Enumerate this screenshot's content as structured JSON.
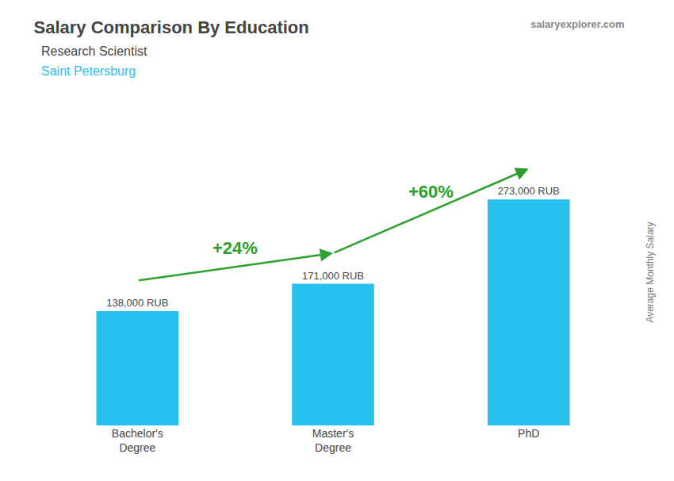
{
  "chart_data": {
    "type": "bar",
    "title": "Salary Comparison By Education",
    "subtitle": "Research Scientist",
    "location": "Saint Petersburg",
    "watermark": "salaryexplorer.com",
    "ylabel": "Average Monthly Salary",
    "categories": [
      "Bachelor's\nDegree",
      "Master's\nDegree",
      "PhD"
    ],
    "values": [
      138000,
      171000,
      273000
    ],
    "value_labels": [
      "138,000 RUB",
      "171,000 RUB",
      "273,000 RUB"
    ],
    "change_labels": [
      "+24%",
      "+60%"
    ],
    "color": "#29BFEF",
    "ylim": [
      0,
      370000
    ],
    "yticks": [],
    "grid": false,
    "tick_labels": "x",
    "data_labels": true
  }
}
